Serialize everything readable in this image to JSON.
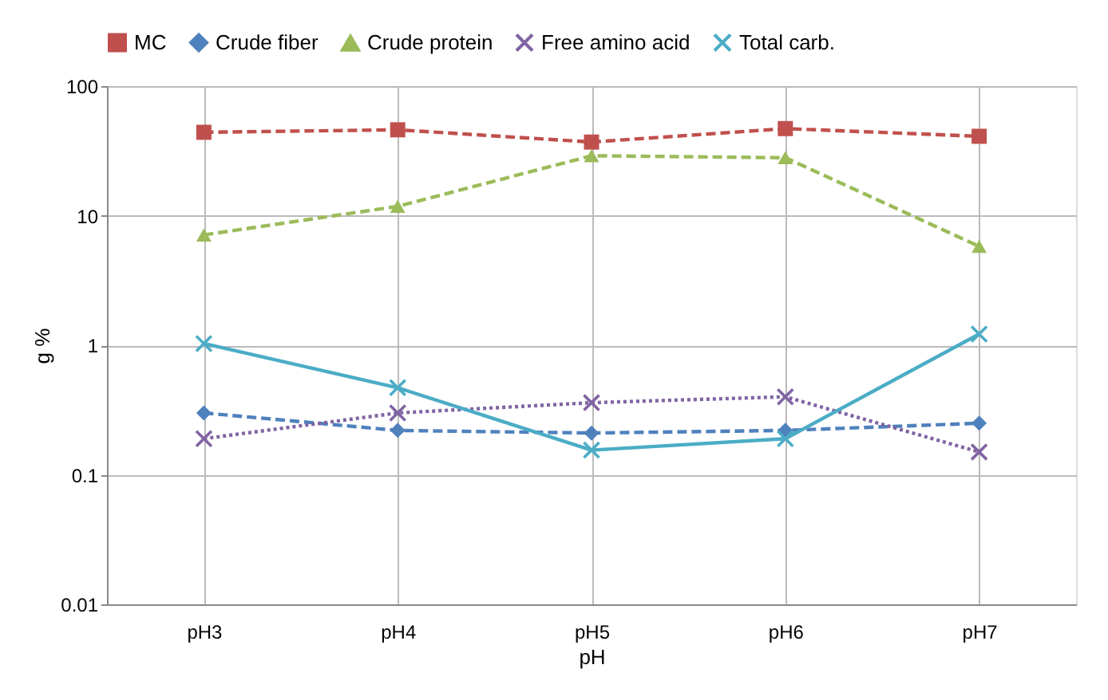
{
  "chart_data": {
    "type": "line",
    "xlabel": "pH",
    "ylabel": "g %",
    "categories": [
      "pH3",
      "pH4",
      "pH5",
      "pH6",
      "pH7"
    ],
    "series": [
      {
        "name": "MC",
        "color": "#c0504d",
        "marker": "square",
        "line_style": "dashed",
        "values": [
          44,
          46,
          37,
          47,
          41
        ]
      },
      {
        "name": "Crude fiber",
        "color": "#4f81bd",
        "marker": "diamond",
        "line_style": "dashed",
        "values": [
          0.3,
          0.22,
          0.21,
          0.22,
          0.25
        ]
      },
      {
        "name": "Crude protein",
        "color": "#9bbb59",
        "marker": "triangle",
        "line_style": "dashed",
        "values": [
          7.1,
          11.8,
          29,
          28,
          5.8
        ]
      },
      {
        "name": "Free amino acid",
        "color": "#8064a2",
        "marker": "cross",
        "line_style": "dotted",
        "values": [
          0.19,
          0.3,
          0.36,
          0.4,
          0.15
        ]
      },
      {
        "name": "Total carb.",
        "color": "#4bacc6",
        "marker": "cross",
        "line_style": "solid",
        "values": [
          1.03,
          0.47,
          0.155,
          0.19,
          1.22
        ]
      }
    ],
    "log": true,
    "ylim": [
      0.01,
      100
    ],
    "yticks": [
      0.01,
      0.1,
      1,
      10,
      100
    ],
    "grid": true,
    "legend": "top"
  }
}
